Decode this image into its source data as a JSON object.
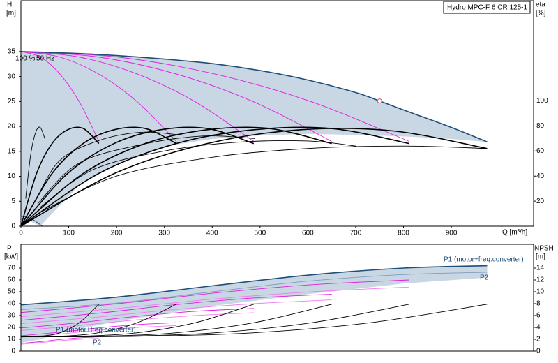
{
  "chart_data": [
    {
      "type": "line",
      "title": "Hydro MPC-F 6 CR 125-1",
      "y_label": "H",
      "y_unit": "[m]",
      "y2_label": "eta",
      "y2_unit": "[%]",
      "x_label": "Q [m³/h]",
      "annotations": [
        "100 %",
        "50 Hz"
      ],
      "xlim": [
        0,
        1072
      ],
      "xticks": [
        0,
        100,
        200,
        300,
        400,
        500,
        600,
        700,
        800,
        900
      ],
      "ylim": [
        0,
        45.2
      ],
      "yticks": [
        0,
        5,
        10,
        15,
        20,
        25,
        30,
        35
      ],
      "y2lim": [
        0,
        180
      ],
      "y2ticks": [
        20,
        40,
        60,
        80,
        100
      ],
      "area": {
        "color": "#c9d6e3",
        "x": [
          0,
          100,
          200,
          300,
          400,
          500,
          600,
          700,
          800,
          900,
          975,
          900,
          800,
          700,
          600,
          500,
          400,
          300,
          250,
          200,
          160,
          120,
          80,
          50,
          40,
          0
        ],
        "values": [
          35,
          34.7,
          34.2,
          33.5,
          32.6,
          31.2,
          29.3,
          26.8,
          23.3,
          19.8,
          16.9,
          17.5,
          18,
          18.3,
          18.5,
          18.2,
          17.5,
          16,
          14.5,
          12.5,
          10.5,
          8,
          4,
          1,
          0,
          2
        ]
      },
      "curves": [
        {
          "color": "#e01ee0",
          "x": [
            0,
            40.75,
            81.5,
            122.25,
            163
          ],
          "values": [
            35,
            33.9,
            30.5,
            24.9,
            17
          ]
        },
        {
          "color": "#e01ee0",
          "x": [
            0,
            81.25,
            162.5,
            243.75,
            325
          ],
          "values": [
            35,
            33.9,
            30.5,
            24.9,
            17
          ]
        },
        {
          "color": "#e01ee0",
          "x": [
            0,
            121.75,
            243.5,
            365.25,
            487
          ],
          "values": [
            35,
            33.9,
            30.5,
            24.9,
            17
          ]
        },
        {
          "color": "#e01ee0",
          "x": [
            0,
            162.5,
            325,
            487.5,
            650
          ],
          "values": [
            35,
            33.9,
            30.5,
            24.9,
            17
          ]
        },
        {
          "color": "#e01ee0",
          "x": [
            0,
            203,
            406,
            609,
            812
          ],
          "values": [
            35,
            33.9,
            30.5,
            24.9,
            17
          ]
        },
        {
          "color": "#1f4e79",
          "bold": true,
          "x": [
            0,
            100,
            200,
            300,
            400,
            500,
            600,
            700,
            750,
            800,
            900,
            975
          ],
          "values": [
            35,
            34.7,
            34.2,
            33.5,
            32.6,
            31.2,
            29.3,
            26.8,
            25.1,
            23.3,
            19.8,
            16.9
          ]
        },
        {
          "color": "#1f4e79",
          "x": [
            0,
            20,
            45
          ],
          "values": [
            2,
            1.6,
            0
          ]
        },
        {
          "color": "#000000",
          "bold": true,
          "axis": "y2",
          "x": [
            0,
            32.6,
            65.2,
            97.8,
            130.4,
            163
          ],
          "values": [
            0,
            42,
            66,
            77,
            78,
            66
          ]
        },
        {
          "color": "#000000",
          "bold": true,
          "axis": "y2",
          "x": [
            0,
            65,
            130,
            195,
            260,
            325
          ],
          "values": [
            0,
            42,
            66,
            77,
            78,
            66
          ]
        },
        {
          "color": "#000000",
          "bold": true,
          "axis": "y2",
          "x": [
            0,
            97.4,
            194.8,
            292.2,
            389.6,
            487
          ],
          "values": [
            0,
            42,
            66,
            77,
            78,
            66
          ]
        },
        {
          "color": "#000000",
          "bold": true,
          "axis": "y2",
          "x": [
            0,
            130,
            260,
            390,
            520,
            650
          ],
          "values": [
            0,
            42,
            66,
            77,
            78,
            66
          ]
        },
        {
          "color": "#000000",
          "bold": true,
          "axis": "y2",
          "x": [
            0,
            162.4,
            324.8,
            487.2,
            649.6,
            812
          ],
          "values": [
            0,
            42,
            66,
            77,
            78,
            66
          ]
        },
        {
          "color": "#000000",
          "bold": true,
          "axis": "y2",
          "x": [
            0,
            195,
            390,
            585,
            780,
            975
          ],
          "values": [
            0,
            42,
            66,
            77,
            76,
            62
          ]
        },
        {
          "color": "#000000",
          "axis": "y2",
          "x": [
            45,
            200,
            400,
            600,
            800,
            975
          ],
          "values": [
            12,
            40,
            55,
            62,
            64,
            62
          ]
        },
        {
          "color": "#000000",
          "axis": "y2",
          "x": [
            40,
            150,
            300,
            450,
            600,
            700
          ],
          "values": [
            15,
            45,
            60,
            67,
            68,
            64
          ]
        },
        {
          "color": "#000000",
          "axis": "y2",
          "x": [
            35,
            120,
            250,
            380,
            490
          ],
          "values": [
            18,
            50,
            65,
            72,
            70
          ]
        },
        {
          "color": "#000000",
          "axis": "y2",
          "x": [
            30,
            80,
            160,
            250,
            330
          ],
          "values": [
            20,
            52,
            68,
            75,
            73
          ]
        },
        {
          "color": "#000000",
          "axis": "y2",
          "x": [
            10,
            20,
            30,
            40,
            50
          ],
          "values": [
            22,
            56,
            74,
            79,
            70
          ]
        }
      ],
      "duty_point": {
        "x": 750,
        "y": 25.1,
        "color": "#e05050"
      }
    },
    {
      "type": "line",
      "y_label": "P",
      "y_unit": "[kW]",
      "y2_label": "NPSH",
      "y2_unit": "[m]",
      "annotations": [
        "P1 (motor+freq.converter)",
        "P2",
        "P1 (motor+freq.converter)",
        "P2"
      ],
      "xlim": [
        0,
        1072
      ],
      "ylim": [
        0,
        90
      ],
      "yticks": [
        0,
        10,
        20,
        30,
        40,
        50,
        60,
        70
      ],
      "y2lim": [
        0,
        18
      ],
      "y2ticks": [
        0,
        2,
        4,
        6,
        8,
        10,
        12,
        14
      ],
      "area": {
        "color": "#c9d6e3",
        "x": [
          0,
          200,
          400,
          600,
          800,
          975,
          975,
          800,
          600,
          400,
          200,
          100,
          40,
          0
        ],
        "values": [
          39,
          45.5,
          55,
          64,
          70,
          72,
          62,
          57,
          48,
          38,
          25,
          17,
          10,
          7
        ]
      },
      "curves": [
        {
          "color": "#1f4e79",
          "bold": true,
          "x": [
            0,
            200,
            400,
            600,
            800,
            975
          ],
          "values": [
            39,
            45.5,
            55,
            64,
            70,
            72
          ]
        },
        {
          "color": "#7f9dbd",
          "x": [
            0,
            200,
            400,
            600,
            800,
            975
          ],
          "values": [
            35,
            40.5,
            50,
            59,
            64.5,
            66.5
          ]
        },
        {
          "color": "#e01ee0",
          "x": [
            0,
            203,
            406,
            609,
            812
          ],
          "values": [
            32.5,
            40,
            49,
            56,
            60
          ]
        },
        {
          "color": "#e01ee0",
          "x": [
            0,
            162.5,
            325,
            487.5,
            650
          ],
          "values": [
            26,
            32,
            39.2,
            44.8,
            48
          ]
        },
        {
          "color": "#e01ee0",
          "x": [
            0,
            121.75,
            243.5,
            365.25,
            487
          ],
          "values": [
            19.5,
            24,
            29.4,
            33.6,
            36
          ]
        },
        {
          "color": "#e01ee0",
          "x": [
            0,
            81.25,
            162.5,
            243.75,
            325
          ],
          "values": [
            13,
            16,
            19.6,
            22.4,
            24
          ]
        },
        {
          "color": "#e01ee0",
          "x": [
            0,
            40.75,
            81.5,
            122.25,
            163
          ],
          "values": [
            6.5,
            8,
            9.8,
            11.2,
            12
          ]
        },
        {
          "color": "#f07cf0",
          "x": [
            0,
            203,
            406,
            609,
            812
          ],
          "values": [
            29,
            36,
            44,
            50,
            54
          ]
        },
        {
          "color": "#f07cf0",
          "x": [
            0,
            162.5,
            325,
            487.5,
            650
          ],
          "values": [
            23.2,
            28.8,
            35.2,
            40,
            43.2
          ]
        },
        {
          "color": "#f07cf0",
          "x": [
            0,
            121.75,
            243.5,
            365.25,
            487
          ],
          "values": [
            17.4,
            21.6,
            26.4,
            30,
            32.4
          ]
        },
        {
          "color": "#f07cf0",
          "x": [
            0,
            81.25,
            162.5,
            243.75,
            325
          ],
          "values": [
            11.6,
            14.4,
            17.6,
            20,
            21.6
          ]
        },
        {
          "color": "#f07cf0",
          "x": [
            0,
            40.75,
            81.5,
            122.25,
            163
          ],
          "values": [
            5.8,
            7.2,
            8.8,
            10,
            10.8
          ]
        },
        {
          "color": "#000000",
          "axis": "y2",
          "x": [
            0,
            40.75,
            81.5,
            122.25,
            163
          ],
          "values": [
            2.4,
            2.5,
            3.1,
            4.8,
            7.9
          ]
        },
        {
          "color": "#000000",
          "axis": "y2",
          "x": [
            0,
            81.25,
            162.5,
            243.75,
            325
          ],
          "values": [
            2.4,
            2.5,
            3.1,
            4.8,
            7.9
          ]
        },
        {
          "color": "#000000",
          "axis": "y2",
          "x": [
            0,
            121.75,
            243.5,
            365.25,
            487
          ],
          "values": [
            2.4,
            2.5,
            3.1,
            4.8,
            7.9
          ]
        },
        {
          "color": "#000000",
          "axis": "y2",
          "x": [
            0,
            162.5,
            325,
            487.5,
            650
          ],
          "values": [
            2.4,
            2.5,
            3.1,
            4.8,
            7.9
          ]
        },
        {
          "color": "#000000",
          "axis": "y2",
          "x": [
            0,
            203,
            406,
            609,
            812
          ],
          "values": [
            2.4,
            2.5,
            3.1,
            4.8,
            7.9
          ]
        },
        {
          "color": "#000000",
          "axis": "y2",
          "x": [
            0,
            243.75,
            487.5,
            731.25,
            975
          ],
          "values": [
            2.4,
            2.5,
            3.1,
            4.8,
            7.9
          ]
        }
      ]
    }
  ]
}
